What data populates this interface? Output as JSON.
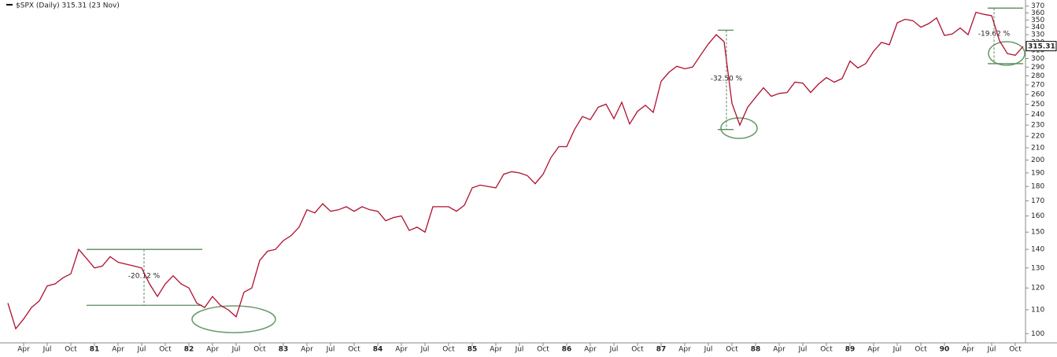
{
  "chart_data": {
    "type": "line",
    "title": "$SPX (Daily) 315.31 (23 Nov)",
    "categories": [
      null,
      null,
      "Apr",
      null,
      null,
      "Jul",
      null,
      null,
      "Oct",
      null,
      null,
      "81",
      null,
      null,
      "Apr",
      null,
      null,
      "Jul",
      null,
      null,
      "Oct",
      null,
      null,
      "82",
      null,
      null,
      "Apr",
      null,
      null,
      "Jul",
      null,
      null,
      "Oct",
      null,
      null,
      "83",
      null,
      null,
      "Apr",
      null,
      null,
      "Jul",
      null,
      null,
      "Oct",
      null,
      null,
      "84",
      null,
      null,
      "Apr",
      null,
      null,
      "Jul",
      null,
      null,
      "Oct",
      null,
      null,
      "85",
      null,
      null,
      "Apr",
      null,
      null,
      "Jul",
      null,
      null,
      "Oct",
      null,
      null,
      "86",
      null,
      null,
      "Apr",
      null,
      null,
      "Jul",
      null,
      null,
      "Oct",
      null,
      null,
      "87",
      null,
      null,
      "Apr",
      null,
      null,
      "Jul",
      null,
      null,
      "Oct",
      null,
      null,
      "88",
      null,
      null,
      "Apr",
      null,
      null,
      "Jul",
      null,
      null,
      "Oct",
      null,
      null,
      "89",
      null,
      null,
      "Apr",
      null,
      null,
      "Jul",
      null,
      null,
      "Oct",
      null,
      null,
      "90",
      null,
      null,
      "Apr",
      null,
      null,
      "Jul",
      null,
      null,
      "Oct",
      null
    ],
    "series": [
      {
        "name": "$SPX",
        "color": "#b0102e",
        "values": [
          113,
          102,
          106,
          111,
          114,
          121,
          122,
          125,
          127,
          140,
          135,
          130,
          131,
          136,
          133,
          132,
          131,
          130,
          122,
          116,
          122,
          126,
          122,
          120,
          113,
          111,
          116,
          112,
          110,
          107,
          118,
          120,
          134,
          139,
          140,
          145,
          148,
          153,
          164,
          162,
          168,
          163,
          164,
          166,
          163,
          166,
          164,
          163,
          157,
          159,
          160,
          151,
          153,
          150,
          166,
          166,
          166,
          163,
          167,
          179,
          181,
          180,
          179,
          189,
          191,
          190,
          188,
          182,
          189,
          202,
          211,
          211,
          226,
          238,
          235,
          247,
          250,
          236,
          252,
          231,
          243,
          249,
          242,
          274,
          284,
          291,
          288,
          290,
          304,
          318,
          330,
          321,
          251,
          230,
          247,
          257,
          267,
          258,
          261,
          262,
          273,
          272,
          262,
          271,
          278,
          273,
          277,
          297,
          289,
          294,
          309,
          320,
          317,
          346,
          351,
          349,
          340,
          345,
          353,
          329,
          331,
          339,
          330,
          361,
          358,
          356,
          322,
          306,
          304,
          315
        ]
      }
    ],
    "last_value": 315.31,
    "log_scale": true,
    "ylim": [
      97,
      372
    ],
    "yticks": [
      100,
      110,
      120,
      130,
      140,
      150,
      160,
      170,
      180,
      190,
      200,
      210,
      220,
      230,
      240,
      250,
      260,
      270,
      280,
      290,
      300,
      310,
      320,
      330,
      340,
      350,
      360,
      370
    ],
    "annotations": [
      {
        "text": "-20.12 %",
        "high": 140,
        "low": 112
      },
      {
        "text": "-32.50 %",
        "high": 336,
        "low": 226
      },
      {
        "text": "-19.62 %",
        "high": 367,
        "low": 294
      }
    ]
  }
}
